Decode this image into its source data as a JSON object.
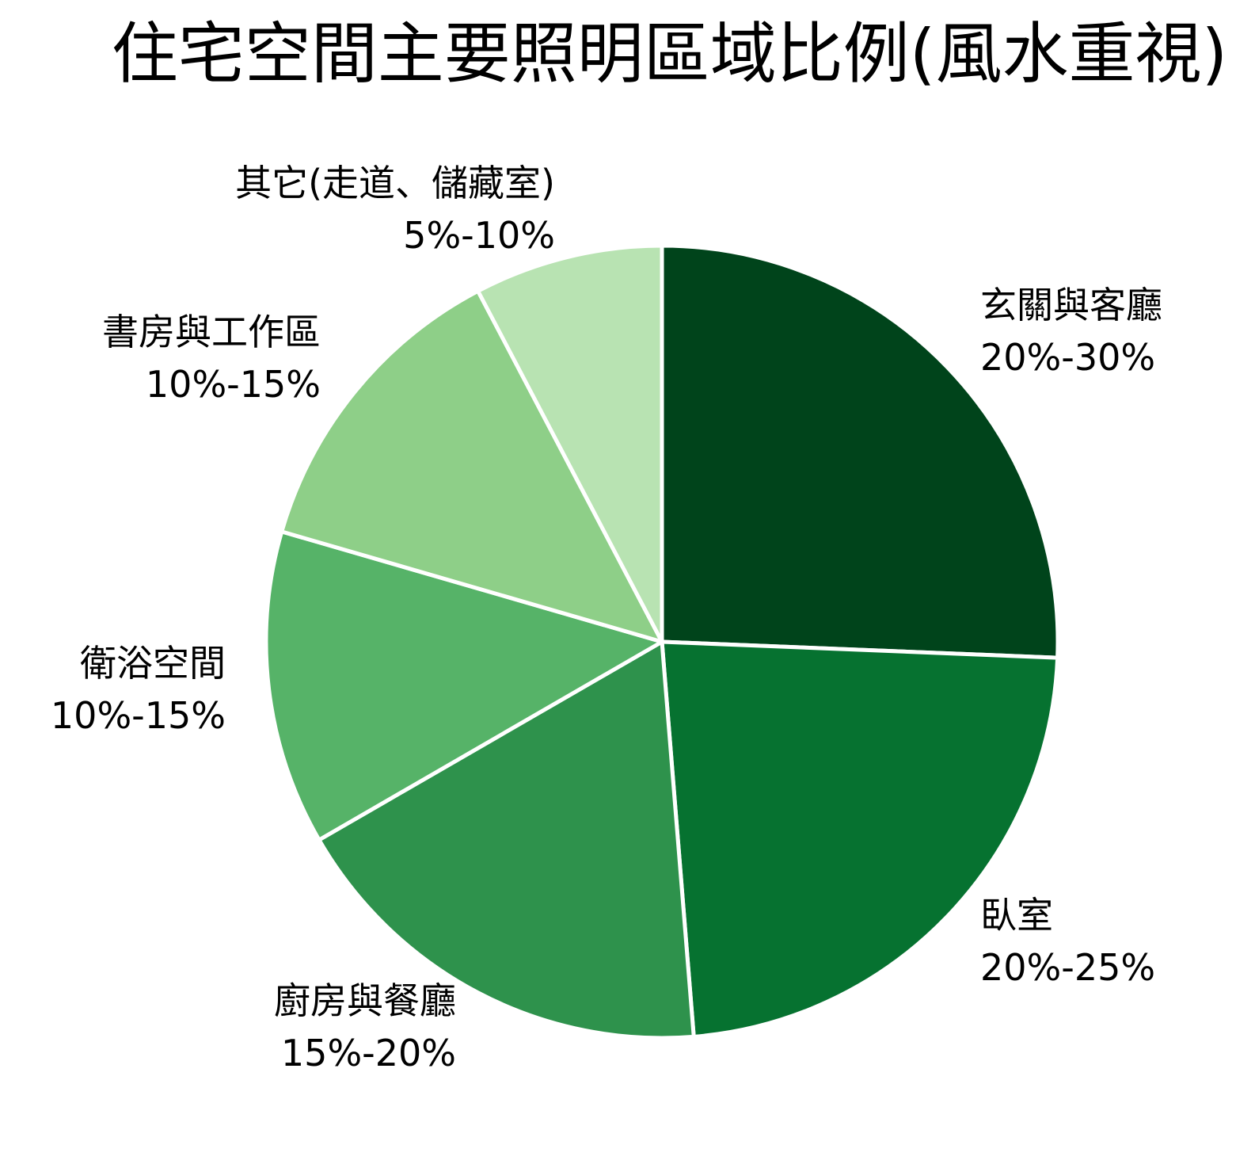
{
  "chart_data": {
    "type": "pie",
    "title": "住宅空間主要照明區域比例(風水重視)",
    "start_angle": "12 o'clock, clockwise",
    "center": [
      836,
      810
    ],
    "radius": 500,
    "slices": [
      {
        "label": "玄關與客廳",
        "range": "20%-30%",
        "value": 25,
        "color": "#00441b"
      },
      {
        "label": "臥室",
        "range": "20%-25%",
        "value": 22.5,
        "color": "#067230"
      },
      {
        "label": "廚房與餐廳",
        "range": "15%-20%",
        "value": 17.5,
        "color": "#2e924c"
      },
      {
        "label": "衛浴空間",
        "range": "10%-15%",
        "value": 12.5,
        "color": "#56b368"
      },
      {
        "label": "書房與工作區",
        "range": "10%-15%",
        "value": 12.5,
        "color": "#8ecf88"
      },
      {
        "label": "其它(走道、儲藏室)",
        "range": "5%-10%",
        "value": 7.5,
        "color": "#b8e3b2"
      }
    ]
  },
  "labels": [
    {
      "name": "玄關與客廳",
      "range": "20%-30%"
    },
    {
      "name": "臥室",
      "range": "20%-25%"
    },
    {
      "name": "廚房與餐廳",
      "range": "15%-20%"
    },
    {
      "name": "衛浴空間",
      "range": "10%-15%"
    },
    {
      "name": "書房與工作區",
      "range": "10%-15%"
    },
    {
      "name": "其它(走道、儲藏室)",
      "range": "5%-10%"
    }
  ]
}
